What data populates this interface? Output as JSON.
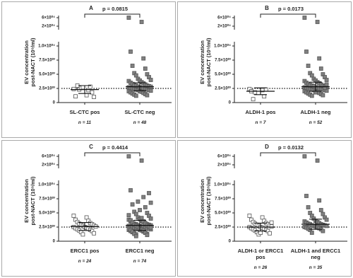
{
  "chart_data": [
    {
      "type": "strip",
      "panel": "A",
      "p_label": "p = 0.0815",
      "y_label": "EV concentration\npost-NACT (10⁹/ml)",
      "categories": [
        "SL-CTC pos",
        "SL-CTC neg"
      ],
      "n_labels": [
        "n = 11",
        "n = 48"
      ],
      "ylim": [
        0,
        60000
      ],
      "y_break": [
        10000,
        20000
      ],
      "yticks": [
        0,
        {
          "value": 2500,
          "label": "2.5×10⁰³"
        },
        {
          "value": 5000,
          "label": "5.0×10⁰³"
        },
        {
          "value": 7500,
          "label": "7.5×10⁰³"
        },
        {
          "value": 10000,
          "label": "1.0×10⁰⁴"
        },
        {
          "value": 20000,
          "label": "2×10⁰⁴"
        },
        {
          "value": 60000,
          "label": "6×10⁰⁴"
        }
      ],
      "reference_line": 2500,
      "series": [
        {
          "marker": "open-square",
          "color": "#555555",
          "mean": 2300,
          "sd": 700,
          "values": [
            2400,
            1300,
            1100,
            2200,
            3000,
            2800,
            2300,
            1800,
            2600,
            1000,
            2700
          ]
        },
        {
          "marker": "filled-square",
          "color": "#808080",
          "mean": 2800,
          "sd": 700,
          "values": [
            60000,
            40000,
            9000,
            7800,
            6500,
            6000,
            5200,
            5000,
            4800,
            4500,
            4200,
            4000,
            3900,
            3800,
            3600,
            3500,
            3400,
            3300,
            3200,
            3100,
            3000,
            3000,
            2900,
            2800,
            2800,
            2700,
            2700,
            2600,
            2600,
            2500,
            2500,
            2400,
            2400,
            2300,
            2300,
            2200,
            2200,
            2100,
            2000,
            2000,
            1900,
            1800,
            1700,
            1600,
            1500,
            1400,
            1300,
            1200
          ]
        }
      ]
    },
    {
      "type": "strip",
      "panel": "B",
      "p_label": "p = 0.0173",
      "y_label": "EV concentration\npost-NACT (10⁹/ml)",
      "categories": [
        "ALDH-1 pos",
        "ALDH-1 neg"
      ],
      "n_labels": [
        "n = 7",
        "n = 52"
      ],
      "ylim": [
        0,
        60000
      ],
      "y_break": [
        10000,
        20000
      ],
      "yticks": [
        0,
        {
          "value": 2500,
          "label": "2.5×10⁰³"
        },
        {
          "value": 5000,
          "label": "5.0×10⁰³"
        },
        {
          "value": 7500,
          "label": "7.5×10⁰³"
        },
        {
          "value": 10000,
          "label": "1.0×10⁰⁴"
        },
        {
          "value": 20000,
          "label": "2×10⁰⁴"
        },
        {
          "value": 60000,
          "label": "6×10⁰⁴"
        }
      ],
      "reference_line": 2500,
      "series": [
        {
          "marker": "open-square",
          "color": "#555555",
          "mean": 2000,
          "sd": 600,
          "values": [
            2400,
            2200,
            2000,
            1100,
            600,
            2300,
            1800
          ]
        },
        {
          "marker": "filled-square",
          "color": "#808080",
          "mean": 2800,
          "sd": 800,
          "values": [
            60000,
            40000,
            9000,
            7800,
            6500,
            6000,
            5200,
            5000,
            4800,
            4500,
            4200,
            4000,
            3900,
            3800,
            3600,
            3500,
            3400,
            3300,
            3200,
            3100,
            3000,
            3000,
            2900,
            2800,
            2800,
            2700,
            2700,
            2600,
            2600,
            2500,
            2500,
            2400,
            2400,
            2300,
            2300,
            2200,
            2200,
            2100,
            2000,
            2000,
            1900,
            1800,
            1700,
            1600,
            1500,
            1400,
            1300,
            1200,
            2600,
            2900,
            3200,
            1800
          ]
        }
      ]
    },
    {
      "type": "strip",
      "panel": "C",
      "p_label": "p = 0.4414",
      "y_label": "EV concentration\npost-NACT (10⁹/ml)",
      "categories": [
        "ERCC1 pos",
        "ERCC1 neg"
      ],
      "n_labels": [
        "n = 24",
        "n = 74"
      ],
      "ylim": [
        0,
        60000
      ],
      "y_break": [
        10000,
        20000
      ],
      "yticks": [
        0,
        {
          "value": 2500,
          "label": "2.5×10⁰³"
        },
        {
          "value": 5000,
          "label": "5.0×10⁰³"
        },
        {
          "value": 7500,
          "label": "7.5×10⁰³"
        },
        {
          "value": 10000,
          "label": "1.0×10⁰⁴"
        },
        {
          "value": 20000,
          "label": "2×10⁰⁴"
        },
        {
          "value": 60000,
          "label": "6×10⁰⁴"
        }
      ],
      "reference_line": 2500,
      "series": [
        {
          "marker": "open-square",
          "color": "#555555",
          "mean": 2600,
          "sd": 700,
          "values": [
            4500,
            4200,
            3800,
            3600,
            3400,
            3200,
            3100,
            3000,
            2900,
            2800,
            2700,
            2600,
            2500,
            2500,
            2400,
            2300,
            2200,
            2100,
            2000,
            1900,
            1800,
            1600,
            1400,
            1200
          ]
        },
        {
          "marker": "filled-square",
          "color": "#808080",
          "mean": 2800,
          "sd": 900,
          "values": [
            60000,
            40000,
            9000,
            7800,
            6500,
            6000,
            5200,
            5000,
            4800,
            4500,
            4200,
            4000,
            3900,
            3800,
            3600,
            3500,
            3400,
            3300,
            3200,
            3100,
            3000,
            3000,
            2900,
            2800,
            2800,
            2700,
            2700,
            2600,
            2600,
            2500,
            2500,
            2400,
            2400,
            2300,
            2300,
            2200,
            2200,
            2100,
            2000,
            2000,
            1900,
            1800,
            1700,
            1600,
            1500,
            1400,
            1300,
            1200,
            8500,
            7000,
            6800,
            5500,
            4600,
            4100,
            3700,
            3500,
            3300,
            3100,
            2900,
            2800,
            2700,
            2600,
            2500,
            2400,
            2300,
            2200,
            2100,
            2000,
            1900,
            1700,
            1500,
            1300,
            1100,
            900
          ]
        }
      ]
    },
    {
      "type": "strip",
      "panel": "D",
      "p_label": "p = 0.0132",
      "y_label": "EV concentration\npost-NACT (10⁹/ml)",
      "categories": [
        "ALDH-1 or ERCC1\npos",
        "ALDH-1 and ERCC1\nneg"
      ],
      "n_labels": [
        "n = 26",
        "n = 35"
      ],
      "ylim": [
        0,
        60000
      ],
      "y_break": [
        10000,
        20000
      ],
      "yticks": [
        0,
        {
          "value": 2500,
          "label": "2.5×10⁰³"
        },
        {
          "value": 5000,
          "label": "5.0×10⁰³"
        },
        {
          "value": 7500,
          "label": "7.5×10⁰³"
        },
        {
          "value": 10000,
          "label": "1.0×10⁰⁴"
        },
        {
          "value": 20000,
          "label": "2×10⁰⁴"
        },
        {
          "value": 60000,
          "label": "6×10⁰⁴"
        }
      ],
      "reference_line": 2500,
      "series": [
        {
          "marker": "open-square",
          "color": "#555555",
          "mean": 2500,
          "sd": 700,
          "values": [
            4500,
            4200,
            3800,
            3600,
            3400,
            3200,
            3100,
            3000,
            2900,
            2800,
            2700,
            2600,
            2500,
            2500,
            2400,
            2300,
            2200,
            2100,
            2000,
            1900,
            1800,
            1600,
            1400,
            1200,
            3300,
            1500
          ]
        },
        {
          "marker": "filled-square",
          "color": "#808080",
          "mean": 3000,
          "sd": 900,
          "values": [
            60000,
            40000,
            8000,
            7200,
            6000,
            5500,
            5000,
            4800,
            4500,
            4200,
            4000,
            3800,
            3600,
            3500,
            3400,
            3300,
            3200,
            3100,
            3000,
            3000,
            2900,
            2800,
            2800,
            2700,
            2700,
            2600,
            2500,
            2500,
            2400,
            2300,
            2200,
            2100,
            2000,
            1800,
            1500
          ]
        }
      ]
    }
  ]
}
